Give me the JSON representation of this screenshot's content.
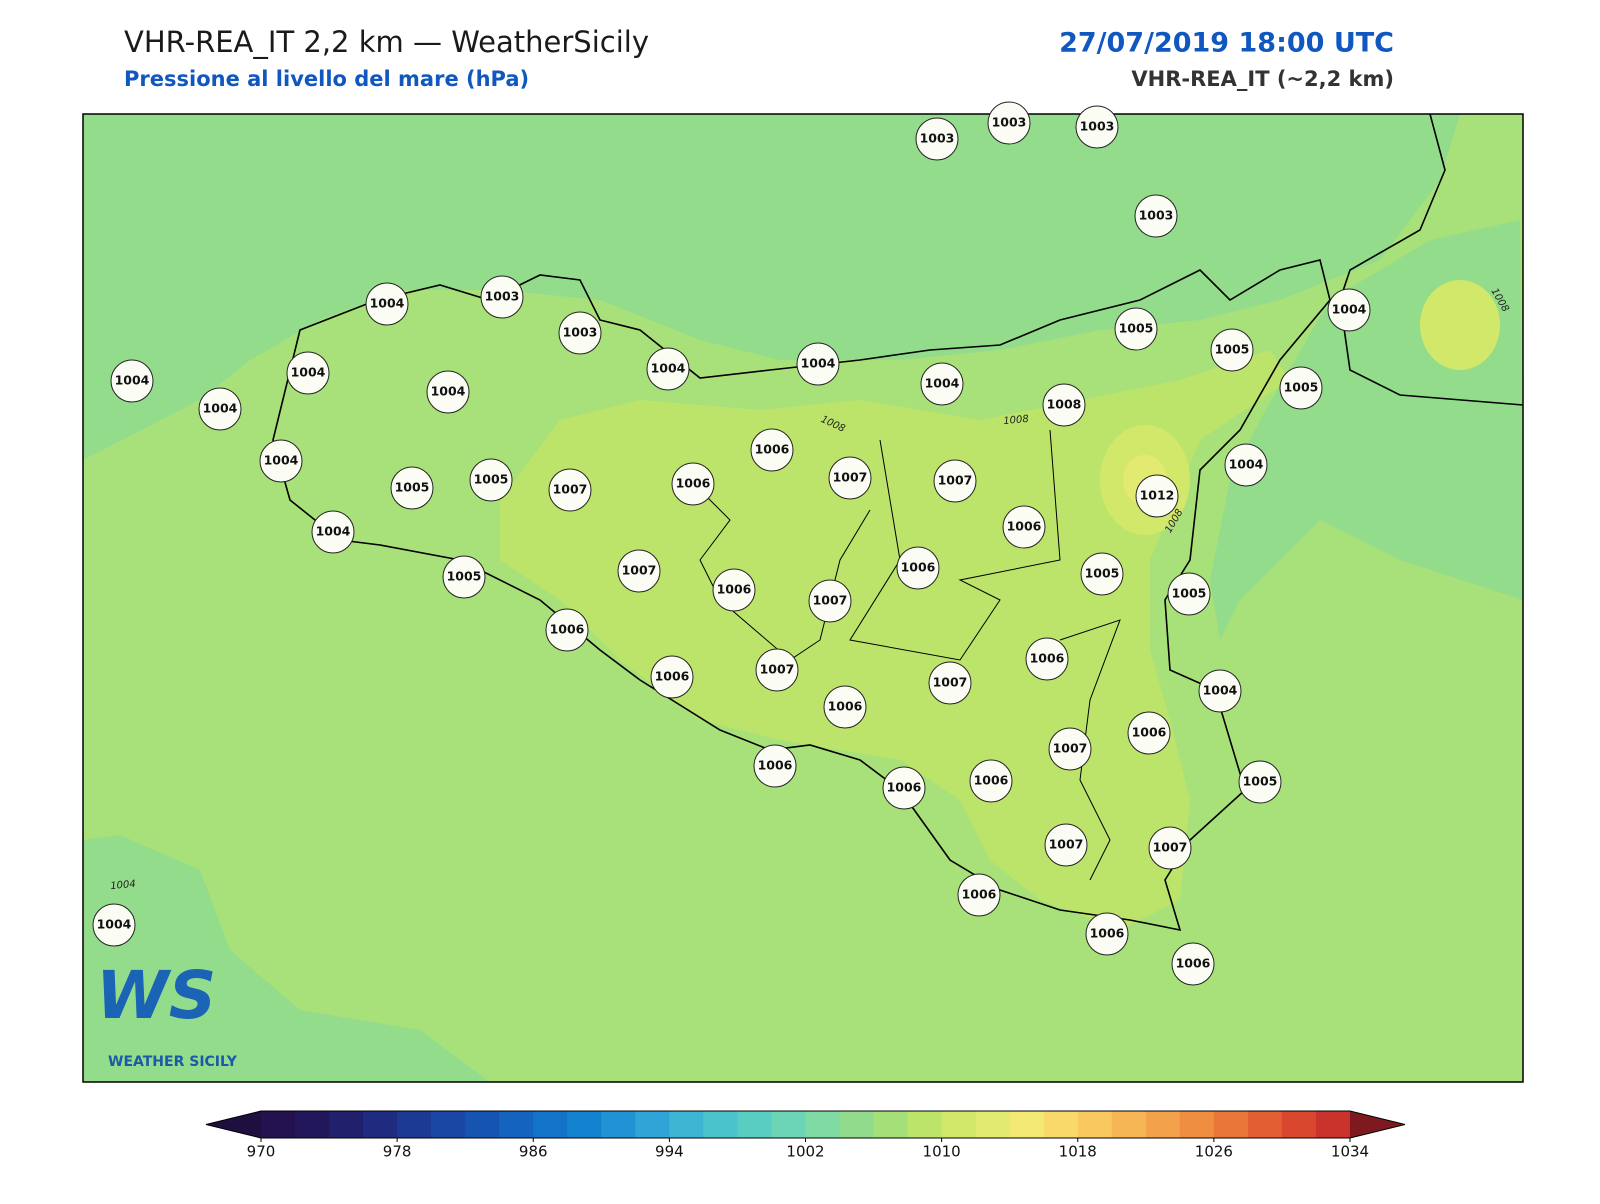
{
  "header": {
    "title": "VHR-REA_IT 2,2 km — WeatherSicily",
    "subtitle": "Pressione al livello del mare (hPa)",
    "datetime": "27/07/2019 18:00 UTC",
    "model": "VHR-REA_IT (~2,2 km)"
  },
  "stations": [
    1003,
    1003,
    1003,
    1003,
    1004,
    1003,
    1003,
    1004,
    1004,
    1004,
    1005,
    1005,
    1004,
    1005,
    1004,
    1004,
    1004,
    1004,
    1004,
    1005,
    1005,
    1007,
    1006,
    1006,
    1007,
    1007,
    1008,
    1012,
    1004,
    1004,
    1005,
    1007,
    1006,
    1007,
    1006,
    1006,
    1005,
    1005,
    1006,
    1006,
    1007,
    1006,
    1007,
    1006,
    1004,
    1006,
    1006,
    1006,
    1007,
    1006,
    1005,
    1007,
    1007,
    1006,
    1006,
    1006,
    1004
  ],
  "contour_labels": [
    1008,
    1008,
    1008,
    1008,
    1004
  ],
  "colorbar": {
    "ticks": [
      970,
      978,
      986,
      994,
      1002,
      1010,
      1018,
      1026,
      1034
    ],
    "under_color": "#1e0f40",
    "over_color": "#7e1a1f",
    "colors": [
      "#231150",
      "#23175c",
      "#21206d",
      "#1f2b7f",
      "#1c3a93",
      "#1a47a3",
      "#1654b1",
      "#1463bf",
      "#1273c9",
      "#1282cf",
      "#1f93d3",
      "#2ea5d6",
      "#3db6d4",
      "#4bc3cc",
      "#5acdc3",
      "#6cd5b6",
      "#7fdaa4",
      "#91dc8c",
      "#a5df78",
      "#bde46a",
      "#d2e86a",
      "#e3ea72",
      "#f2e873",
      "#fad96b",
      "#f9c85f",
      "#f6b655",
      "#f3a24b",
      "#ef8d41",
      "#ea763a",
      "#e35f33",
      "#d8472e",
      "#c9332b"
    ]
  },
  "logo": {
    "mark": "WS",
    "name": "WEATHER SICILY"
  }
}
